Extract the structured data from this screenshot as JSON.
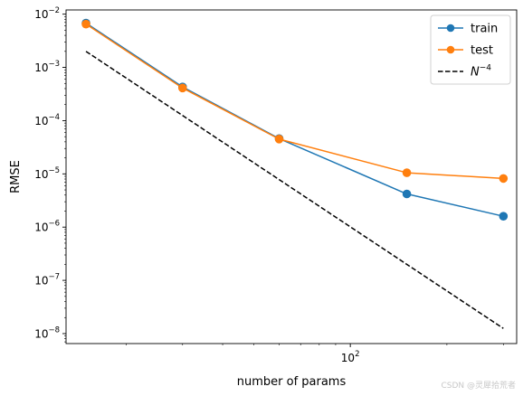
{
  "chart_data": {
    "type": "line",
    "xscale": "log",
    "yscale": "log",
    "xlabel": "number of params",
    "ylabel": "RMSE",
    "xlim": [
      13,
      330
    ],
    "ylim": [
      6.5e-09,
      0.012
    ],
    "x_ticks": [
      {
        "value": 100,
        "base": "10",
        "exp": "2"
      }
    ],
    "y_ticks": [
      {
        "value": 1e-08,
        "base": "10",
        "exp": "−8"
      },
      {
        "value": 1e-07,
        "base": "10",
        "exp": "−7"
      },
      {
        "value": 1e-06,
        "base": "10",
        "exp": "−6"
      },
      {
        "value": 1e-05,
        "base": "10",
        "exp": "−5"
      },
      {
        "value": 0.0001,
        "base": "10",
        "exp": "−4"
      },
      {
        "value": 0.001,
        "base": "10",
        "exp": "−3"
      },
      {
        "value": 0.01,
        "base": "10",
        "exp": "−2"
      }
    ],
    "legend_position": "top-right",
    "series": [
      {
        "name": "train",
        "color": "#1f77b4",
        "style": "solid",
        "marker": "circle",
        "x": [
          15,
          30,
          60,
          150,
          300
        ],
        "y": [
          0.0068,
          0.00043,
          4.6e-05,
          4.2e-06,
          1.6e-06
        ]
      },
      {
        "name": "test",
        "color": "#ff7f0e",
        "style": "solid",
        "marker": "circle",
        "x": [
          15,
          30,
          60,
          150,
          300
        ],
        "y": [
          0.0065,
          0.00041,
          4.5e-05,
          1.05e-05,
          8.2e-06
        ]
      },
      {
        "name_base": "N",
        "name_exp": "−4",
        "color": "#000000",
        "style": "dashed",
        "marker": "none",
        "x": [
          15,
          300
        ],
        "y": [
          0.002,
          1.25e-08
        ]
      }
    ]
  },
  "watermark": "CSDN @灵犀拾荒者"
}
